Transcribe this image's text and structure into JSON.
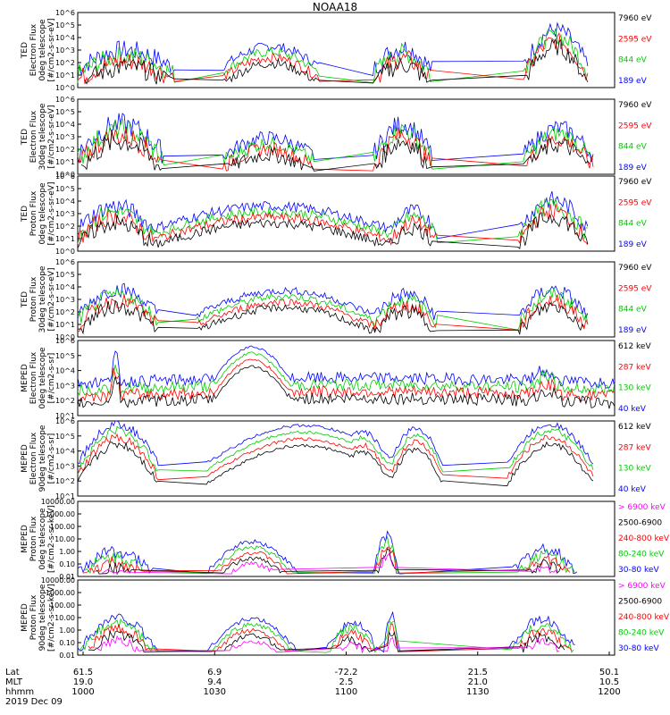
{
  "title": "NOAA18",
  "footer": {
    "row_labels": [
      "Lat",
      "MLT",
      "hhmm"
    ],
    "date": "2019 Dec 09",
    "columns": [
      {
        "lat": "61.5",
        "mlt": "19.0",
        "hhmm": "1000"
      },
      {
        "lat": "6.9",
        "mlt": "9.4",
        "hhmm": "1030"
      },
      {
        "lat": "-72.2",
        "mlt": "2.5",
        "hhmm": "1100"
      },
      {
        "lat": "21.5",
        "mlt": "21.0",
        "hhmm": "1130"
      },
      {
        "lat": "50.1",
        "mlt": "10.5",
        "hhmm": "1200"
      }
    ]
  },
  "chart_data": [
    {
      "type": "line",
      "log_y": true,
      "ylabel": [
        "TED",
        "Electron Flux",
        "0deg telescope",
        "[#/cm2-s-sr-eV]"
      ],
      "y_ticks": [
        "10^6",
        "10^5",
        "10^4",
        "10^3",
        "10^2",
        "10^1",
        "10^0"
      ],
      "x_range": [
        "1000",
        "1200"
      ],
      "series": [
        {
          "name": "7960 eV",
          "color": "#000000"
        },
        {
          "name": "2595 eV",
          "color": "#ff0000"
        },
        {
          "name": "844 eV",
          "color": "#00cc00"
        },
        {
          "name": "189 eV",
          "color": "#0000ff"
        }
      ],
      "features": [
        {
          "t0": 0.0,
          "t1": 0.18,
          "peak": 3.0,
          "floor": 1.5,
          "jag": 0.8
        },
        {
          "t0": 0.27,
          "t1": 0.45,
          "peak": 3.3,
          "floor": 1.7,
          "jag": 0.4
        },
        {
          "t0": 0.55,
          "t1": 0.66,
          "peak": 3.2,
          "floor": 1.4,
          "jag": 0.8
        },
        {
          "t0": 0.83,
          "t1": 0.95,
          "peak": 4.6,
          "floor": 1.8,
          "jag": 0.7
        }
      ]
    },
    {
      "type": "line",
      "log_y": true,
      "ylabel": [
        "TED",
        "Electron Flux",
        "30deg telescope",
        "[#/cm2-s-sr-eV]"
      ],
      "y_ticks": [
        "10^6",
        "10^5",
        "10^4",
        "10^3",
        "10^2",
        "10^1",
        "10^0"
      ],
      "x_range": [
        "1000",
        "1200"
      ],
      "series": [
        {
          "name": "7960 eV",
          "color": "#000000"
        },
        {
          "name": "2595 eV",
          "color": "#ff0000"
        },
        {
          "name": "844 eV",
          "color": "#00cc00"
        },
        {
          "name": "189 eV",
          "color": "#0000ff"
        }
      ],
      "features": [
        {
          "t0": 0.0,
          "t1": 0.16,
          "peak": 4.0,
          "floor": 1.6,
          "jag": 0.9
        },
        {
          "t0": 0.27,
          "t1": 0.44,
          "peak": 2.9,
          "floor": 1.5,
          "jag": 0.6
        },
        {
          "t0": 0.55,
          "t1": 0.66,
          "peak": 4.0,
          "floor": 1.5,
          "jag": 0.8
        },
        {
          "t0": 0.83,
          "t1": 0.96,
          "peak": 3.7,
          "floor": 1.5,
          "jag": 0.7
        }
      ]
    },
    {
      "type": "line",
      "log_y": true,
      "ylabel": [
        "TED",
        "Proton Flux",
        "0deg telescope",
        "[#/cm2-s-sr-eV]"
      ],
      "y_ticks": [
        "10^6",
        "10^5",
        "10^4",
        "10^3",
        "10^2",
        "10^1",
        "10^0"
      ],
      "x_range": [
        "1000",
        "1200"
      ],
      "series": [
        {
          "name": "7960 eV",
          "color": "#000000"
        },
        {
          "name": "2595 eV",
          "color": "#ff0000"
        },
        {
          "name": "844 eV",
          "color": "#00cc00"
        },
        {
          "name": "189 eV",
          "color": "#0000ff"
        }
      ],
      "features": [
        {
          "t0": 0.0,
          "t1": 0.14,
          "peak": 3.6,
          "floor": 1.8,
          "jag": 0.7
        },
        {
          "t0": 0.14,
          "t1": 0.58,
          "peak": 3.6,
          "floor": 1.8,
          "jag": 0.4
        },
        {
          "t0": 0.58,
          "t1": 0.67,
          "peak": 3.2,
          "floor": 1.6,
          "jag": 0.6
        },
        {
          "t0": 0.82,
          "t1": 0.95,
          "peak": 4.1,
          "floor": 1.7,
          "jag": 0.7
        }
      ]
    },
    {
      "type": "line",
      "log_y": true,
      "ylabel": [
        "TED",
        "Proton Flux",
        "30deg telescope",
        "[#/cm2-s-sr-eV]"
      ],
      "y_ticks": [
        "10^6",
        "10^5",
        "10^4",
        "10^3",
        "10^2",
        "10^1",
        "10^0"
      ],
      "x_range": [
        "1000",
        "1200"
      ],
      "series": [
        {
          "name": "7960 eV",
          "color": "#000000"
        },
        {
          "name": "2595 eV",
          "color": "#ff0000"
        },
        {
          "name": "844 eV",
          "color": "#00cc00"
        },
        {
          "name": "189 eV",
          "color": "#0000ff"
        }
      ],
      "features": [
        {
          "t0": 0.0,
          "t1": 0.15,
          "peak": 3.8,
          "floor": 1.8,
          "jag": 0.6
        },
        {
          "t0": 0.22,
          "t1": 0.55,
          "peak": 3.7,
          "floor": 1.8,
          "jag": 0.3
        },
        {
          "t0": 0.55,
          "t1": 0.67,
          "peak": 3.4,
          "floor": 1.6,
          "jag": 0.6
        },
        {
          "t0": 0.82,
          "t1": 0.95,
          "peak": 3.8,
          "floor": 1.6,
          "jag": 0.6
        }
      ]
    },
    {
      "type": "line",
      "log_y": true,
      "ylabel": [
        "MEPED",
        "Electron Flux",
        "0deg telescope",
        "[#/cm2-s-sr]"
      ],
      "y_ticks": [
        "10^6",
        "10^5",
        "10^4",
        "10^3",
        "10^2",
        "10^1"
      ],
      "x_range": [
        "1000",
        "1200"
      ],
      "series": [
        {
          "name": "612 keV",
          "color": "#000000"
        },
        {
          "name": "287 keV",
          "color": "#ff0000"
        },
        {
          "name": "130 keV",
          "color": "#00cc00"
        },
        {
          "name": "40 keV",
          "color": "#0000ff"
        }
      ],
      "features": [
        {
          "t0": 0.0,
          "t1": 1.0,
          "peak": 2.5,
          "floor": 2.2,
          "jag": 0.4
        },
        {
          "t0": 0.25,
          "t1": 0.4,
          "peak": 4.6,
          "floor": 2.2,
          "jag": 0.1
        },
        {
          "t0": 0.06,
          "t1": 0.08,
          "peak": 4.0,
          "floor": 2.2,
          "jag": 0.5
        },
        {
          "t0": 0.84,
          "t1": 0.9,
          "peak": 3.0,
          "floor": 2.2,
          "jag": 0.5
        }
      ]
    },
    {
      "type": "line",
      "log_y": true,
      "ylabel": [
        "MEPED",
        "Electron Flux",
        "90deg telescope",
        "[#/cm2-s-sr]"
      ],
      "y_ticks": [
        "10^6",
        "10^5",
        "10^4",
        "10^3",
        "10^2",
        "10^1"
      ],
      "x_range": [
        "1000",
        "1200"
      ],
      "series": [
        {
          "name": "612 keV",
          "color": "#000000"
        },
        {
          "name": "287 keV",
          "color": "#ff0000"
        },
        {
          "name": "130 keV",
          "color": "#00cc00"
        },
        {
          "name": "40 keV",
          "color": "#0000ff"
        }
      ],
      "features": [
        {
          "t0": 0.0,
          "t1": 0.15,
          "peak": 4.8,
          "floor": 2.2,
          "jag": 0.3
        },
        {
          "t0": 0.24,
          "t1": 0.6,
          "peak": 4.7,
          "floor": 2.2,
          "jag": 0.1
        },
        {
          "t0": 0.48,
          "t1": 0.58,
          "peak": 4.3,
          "floor": 2.2,
          "jag": 0.2
        },
        {
          "t0": 0.58,
          "t1": 0.68,
          "peak": 4.5,
          "floor": 2.2,
          "jag": 0.2
        },
        {
          "t0": 0.8,
          "t1": 0.96,
          "peak": 4.8,
          "floor": 2.2,
          "jag": 0.2
        }
      ]
    },
    {
      "type": "line",
      "log_y": true,
      "ylabel": [
        "MEPED",
        "Proton Flux",
        "0deg telescope",
        "[#/cm2-s-sr-keV]"
      ],
      "y_ticks": [
        "10000.00",
        "1000.00",
        "100.00",
        "10.00",
        "1.00",
        "0.10",
        "0.01"
      ],
      "x_range": [
        "1000",
        "1200"
      ],
      "series": [
        {
          "name": "> 6900 keV",
          "color": "#ff00ff"
        },
        {
          "name": "2500-6900",
          "color": "#000000"
        },
        {
          "name": "240-800 keV",
          "color": "#ff0000"
        },
        {
          "name": "80-240 keV",
          "color": "#00cc00"
        },
        {
          "name": "30-80 keV",
          "color": "#0000ff"
        }
      ],
      "features": [
        {
          "t0": 0.0,
          "t1": 0.14,
          "peak": 2.0,
          "floor": 0.3,
          "jag": 0.5
        },
        {
          "t0": 0.24,
          "t1": 0.41,
          "peak": 2.8,
          "floor": 0.3,
          "jag": 0.2
        },
        {
          "t0": 0.55,
          "t1": 0.6,
          "peak": 3.3,
          "floor": 0.3,
          "jag": 0.5
        },
        {
          "t0": 0.81,
          "t1": 0.93,
          "peak": 2.2,
          "floor": 0.3,
          "jag": 0.5
        }
      ]
    },
    {
      "type": "line",
      "log_y": true,
      "ylabel": [
        "MEPED",
        "Proton Flux",
        "90deg telescope",
        "[#/cm2-s-sr-keV]"
      ],
      "y_ticks": [
        "10000.00",
        "1000.00",
        "100.00",
        "10.00",
        "1.00",
        "0.10",
        "0.01"
      ],
      "x_range": [
        "1000",
        "1200"
      ],
      "series": [
        {
          "name": "> 6900 keV",
          "color": "#ff00ff"
        },
        {
          "name": "2500-6900",
          "color": "#000000"
        },
        {
          "name": "240-800 keV",
          "color": "#ff0000"
        },
        {
          "name": "80-240 keV",
          "color": "#00cc00"
        },
        {
          "name": "30-80 keV",
          "color": "#0000ff"
        }
      ],
      "features": [
        {
          "t0": 0.0,
          "t1": 0.15,
          "peak": 3.0,
          "floor": 0.3,
          "jag": 0.4
        },
        {
          "t0": 0.24,
          "t1": 0.41,
          "peak": 2.9,
          "floor": 0.3,
          "jag": 0.2
        },
        {
          "t0": 0.46,
          "t1": 0.56,
          "peak": 2.6,
          "floor": 0.3,
          "jag": 0.4
        },
        {
          "t0": 0.57,
          "t1": 0.6,
          "peak": 3.3,
          "floor": 0.3,
          "jag": 0.4
        },
        {
          "t0": 0.8,
          "t1": 0.93,
          "peak": 2.8,
          "floor": 0.3,
          "jag": 0.4
        }
      ]
    }
  ]
}
